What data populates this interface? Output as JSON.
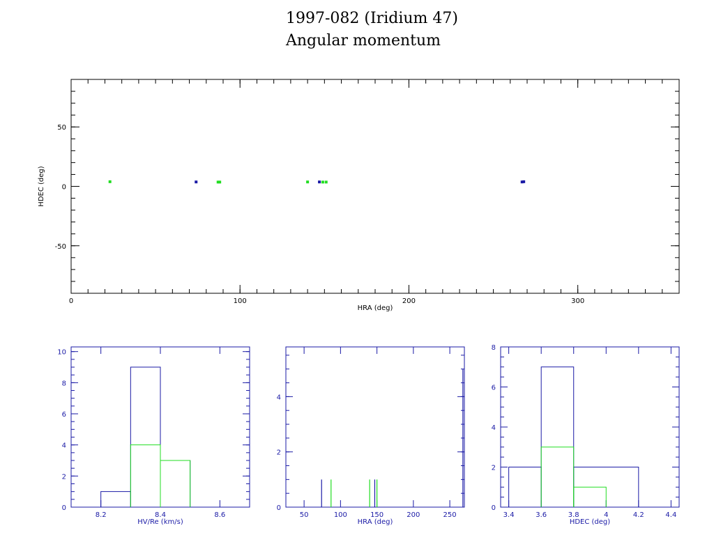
{
  "title": {
    "line1": "1997-082 (Iridium 47)",
    "line2": "Angular momentum"
  },
  "colors": {
    "blue": "#1a1aa6",
    "green": "#22dd22",
    "black": "#000000"
  },
  "chart_data": [
    {
      "type": "scatter",
      "xlabel": "HRA (deg)",
      "ylabel": "HDEC (deg)",
      "xlim": [
        0,
        360
      ],
      "ylim": [
        -90,
        90
      ],
      "xticks": [
        0,
        100,
        200,
        300
      ],
      "yticks": [
        -50,
        0,
        50
      ],
      "series": [
        {
          "color": "blue",
          "points": [
            [
              74,
              3.7
            ],
            [
              147,
              3.7
            ],
            [
              267,
              3.7
            ],
            [
              268,
              3.9
            ]
          ]
        },
        {
          "color": "green",
          "points": [
            [
              23,
              3.9
            ],
            [
              87,
              3.6
            ],
            [
              88,
              3.6
            ],
            [
              140,
              3.7
            ],
            [
              149,
              3.6
            ],
            [
              151,
              3.6
            ]
          ]
        }
      ]
    },
    {
      "type": "bar",
      "xlabel": "HV/Re (km/s)",
      "xlim": [
        8.1,
        8.7
      ],
      "ylim": [
        0,
        10.3
      ],
      "xticks": [
        "8.2",
        "8.4",
        "8.6"
      ],
      "yticks": [
        "0",
        "2",
        "4",
        "6",
        "8",
        "10"
      ],
      "series": [
        {
          "color": "blue",
          "bins": [
            [
              8.2,
              8.3,
              1
            ],
            [
              8.3,
              8.4,
              9
            ],
            [
              8.4,
              8.5,
              3
            ]
          ]
        },
        {
          "color": "green",
          "bins": [
            [
              8.3,
              8.4,
              4
            ],
            [
              8.4,
              8.5,
              3
            ]
          ]
        }
      ]
    },
    {
      "type": "bar",
      "xlabel": "HRA (deg)",
      "xlim": [
        25,
        270
      ],
      "ylim": [
        0,
        5.8
      ],
      "xticks": [
        "50",
        "100",
        "150",
        "200",
        "250"
      ],
      "yticks": [
        "0",
        "2",
        "4"
      ],
      "series": [
        {
          "color": "blue",
          "spikes": [
            [
              74,
              1
            ],
            [
              147,
              1
            ],
            [
              268,
              5
            ]
          ]
        },
        {
          "color": "green",
          "spikes": [
            [
              87,
              1
            ],
            [
              140,
              1
            ],
            [
              150,
              1
            ]
          ]
        }
      ]
    },
    {
      "type": "bar",
      "xlabel": "HDEC (deg)",
      "xlim": [
        3.35,
        4.45
      ],
      "ylim": [
        0,
        8
      ],
      "xticks": [
        "3.4",
        "3.6",
        "3.8",
        "4",
        "4.2",
        "4.4"
      ],
      "yticks": [
        "0",
        "2",
        "4",
        "6",
        "8"
      ],
      "series": [
        {
          "color": "blue",
          "bins": [
            [
              3.4,
              3.6,
              2
            ],
            [
              3.6,
              3.8,
              7
            ],
            [
              3.8,
              4.2,
              2
            ]
          ]
        },
        {
          "color": "green",
          "bins": [
            [
              3.6,
              3.8,
              3
            ],
            [
              3.8,
              4.0,
              1
            ]
          ]
        }
      ]
    }
  ]
}
